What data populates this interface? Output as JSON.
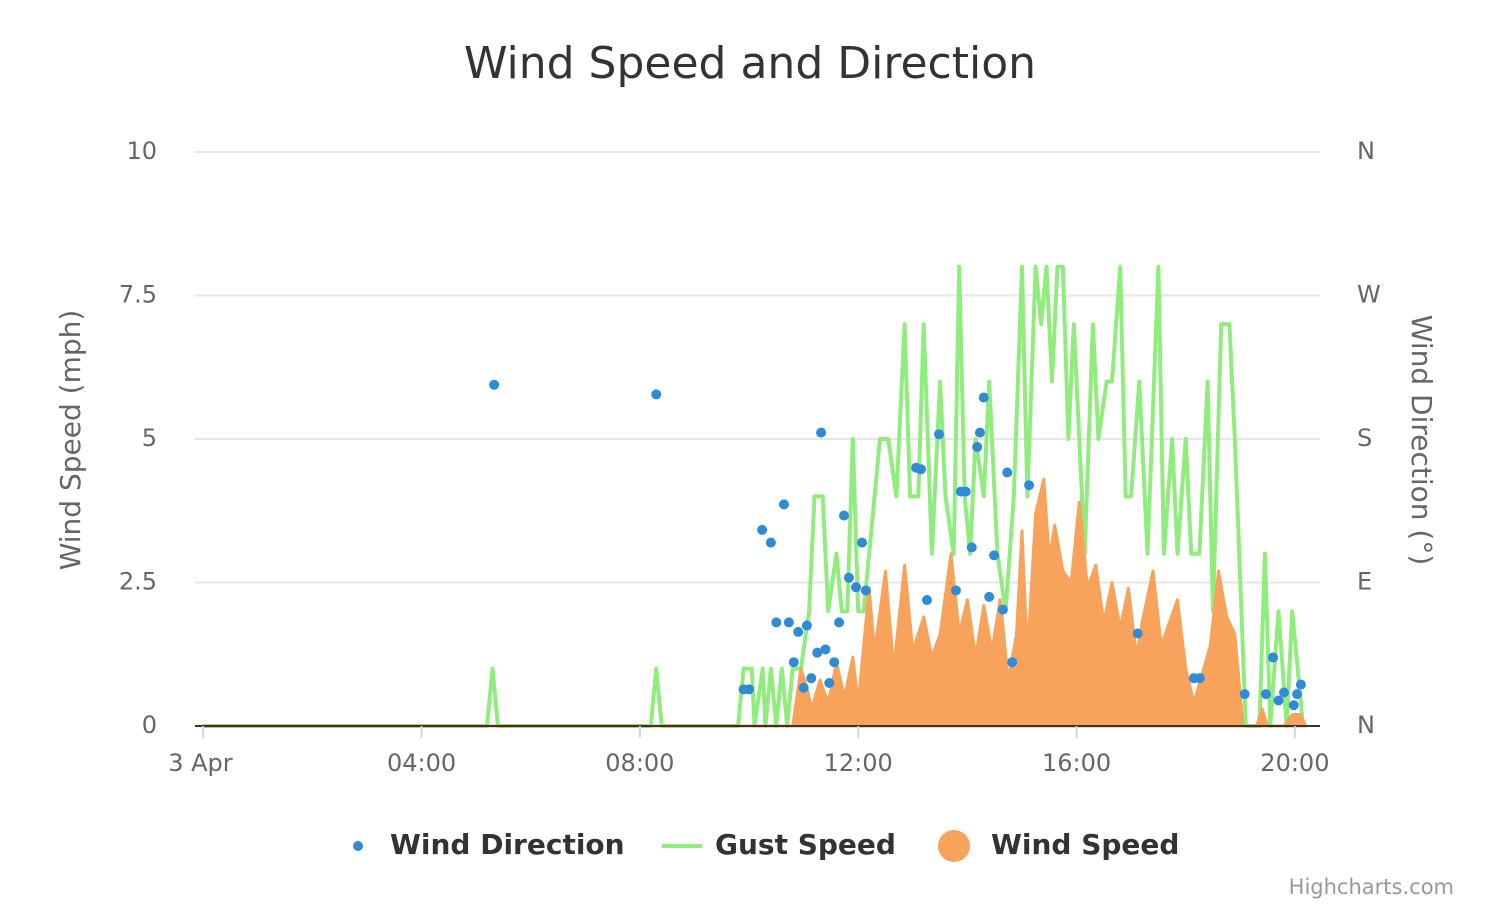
{
  "chart_data": {
    "type": "line",
    "title": "Wind Speed and Direction",
    "y_label": "Wind Speed (mph)",
    "y2_label": "Wind Direction (°)",
    "credits": "Highcharts.com",
    "grid": true,
    "legend": "bottom",
    "xlim": [
      -0.15,
      20.46
    ],
    "xticks": [
      {
        "value": 0,
        "label": "3 Apr"
      },
      {
        "value": 4,
        "label": "04:00"
      },
      {
        "value": 8,
        "label": "08:00"
      },
      {
        "value": 12,
        "label": "12:00"
      },
      {
        "value": 16,
        "label": "16:00"
      },
      {
        "value": 20,
        "label": "20:00"
      }
    ],
    "ylim": [
      0,
      10
    ],
    "yticks": [
      0,
      2.5,
      5,
      7.5,
      10
    ],
    "y2lim": [
      0,
      360
    ],
    "y2ticks": [
      {
        "value": 0,
        "label": "N"
      },
      {
        "value": 90,
        "label": "E"
      },
      {
        "value": 180,
        "label": "S"
      },
      {
        "value": 270,
        "label": "W"
      },
      {
        "value": 360,
        "label": "N"
      }
    ],
    "series": [
      {
        "name": "Wind Direction",
        "type": "scatter",
        "axis": "y2",
        "color": "#2f8bd6",
        "x": [
          5.33,
          8.3,
          9.9,
          10.0,
          10.24,
          10.4,
          10.5,
          10.64,
          10.73,
          10.82,
          10.9,
          11.0,
          11.06,
          11.14,
          11.25,
          11.32,
          11.4,
          11.47,
          11.56,
          11.65,
          11.74,
          11.83,
          11.96,
          12.07,
          12.14,
          13.06,
          13.15,
          13.26,
          13.48,
          13.79,
          13.88,
          13.97,
          14.08,
          14.18,
          14.23,
          14.3,
          14.4,
          14.49,
          14.65,
          14.73,
          14.82,
          15.13,
          17.12,
          18.15,
          18.26,
          19.08,
          19.47,
          19.6,
          19.7,
          19.8,
          19.98,
          20.04,
          20.11
        ],
        "values": [
          214,
          208,
          23,
          23,
          123,
          115,
          65,
          139,
          65,
          40,
          59,
          24,
          63,
          30,
          46,
          184,
          48,
          27,
          40,
          65,
          132,
          93,
          87,
          115,
          85,
          162,
          161,
          79,
          183,
          85,
          147,
          147,
          112,
          175,
          184,
          206,
          81,
          107,
          73,
          159,
          40,
          151,
          58,
          30,
          30,
          20,
          20,
          43,
          16,
          21,
          13,
          20,
          26
        ]
      },
      {
        "name": "Gust Speed",
        "type": "line",
        "color": "#90ed7d",
        "x": [
          0,
          5.2,
          5.3,
          5.4,
          8.2,
          8.3,
          8.4,
          9.8,
          9.9,
          10.05,
          10.1,
          10.25,
          10.3,
          10.4,
          10.5,
          10.6,
          10.7,
          10.8,
          10.95,
          11.1,
          11.2,
          11.35,
          11.45,
          11.6,
          11.7,
          11.8,
          11.9,
          12.0,
          12.1,
          12.3,
          12.4,
          12.55,
          12.7,
          12.85,
          12.95,
          13.1,
          13.2,
          13.35,
          13.5,
          13.6,
          13.75,
          13.85,
          13.95,
          14.05,
          14.15,
          14.3,
          14.4,
          14.55,
          14.7,
          14.85,
          15.0,
          15.1,
          15.25,
          15.35,
          15.45,
          15.55,
          15.65,
          15.75,
          15.85,
          15.95,
          16.05,
          16.15,
          16.3,
          16.4,
          16.55,
          16.65,
          16.8,
          16.9,
          17.0,
          17.15,
          17.3,
          17.5,
          17.6,
          17.75,
          17.85,
          18.0,
          18.1,
          18.25,
          18.4,
          18.5,
          18.65,
          18.8,
          18.9,
          19.1,
          19.35,
          19.45,
          19.55,
          19.7,
          19.85,
          19.95,
          20.15
        ],
        "values": [
          0,
          0,
          1,
          0,
          0,
          1,
          0,
          0,
          1,
          1,
          0,
          1,
          0,
          1,
          0,
          1,
          0,
          1,
          1,
          2,
          4,
          4,
          2,
          3,
          2,
          2,
          5,
          2,
          2,
          4,
          5,
          5,
          4,
          7,
          4,
          4,
          7,
          3,
          6,
          4,
          3,
          8,
          4,
          3,
          5,
          4,
          6,
          3,
          2,
          4,
          8,
          4,
          8,
          7,
          8,
          6,
          8,
          8,
          5,
          7,
          5,
          3,
          7,
          5,
          6,
          6,
          8,
          4,
          4,
          6,
          3,
          8,
          3,
          5,
          3,
          5,
          3,
          3,
          6,
          2,
          7,
          7,
          5,
          0,
          0,
          3,
          0,
          2,
          0,
          2,
          0
        ]
      },
      {
        "name": "Wind Speed",
        "type": "area",
        "color": "#f7a35c",
        "x": [
          0,
          10.8,
          10.95,
          11.05,
          11.15,
          11.3,
          11.45,
          11.6,
          11.75,
          11.9,
          12.0,
          12.2,
          12.3,
          12.5,
          12.65,
          12.85,
          13.0,
          13.2,
          13.35,
          13.5,
          13.7,
          13.85,
          14.0,
          14.15,
          14.3,
          14.45,
          14.6,
          14.75,
          14.9,
          15.0,
          15.1,
          15.25,
          15.4,
          15.5,
          15.6,
          15.75,
          15.9,
          16.05,
          16.2,
          16.35,
          16.5,
          16.65,
          16.8,
          16.95,
          17.1,
          17.2,
          17.4,
          17.55,
          17.7,
          17.85,
          18.0,
          18.15,
          18.3,
          18.45,
          18.6,
          18.75,
          18.9,
          19.05,
          19.3,
          19.4,
          19.5,
          19.8,
          19.95,
          20.1,
          20.2
        ],
        "values": [
          0,
          0,
          1,
          0.7,
          0.3,
          0.8,
          0.4,
          1.1,
          0.5,
          1.2,
          0.4,
          2.4,
          1.3,
          2.7,
          1.0,
          2.8,
          1.3,
          1.9,
          1.2,
          1.6,
          3.0,
          1.6,
          2.2,
          1.2,
          2.1,
          1.3,
          2.2,
          0.8,
          1.6,
          3.4,
          1.2,
          3.7,
          4.3,
          2.9,
          3.5,
          2.7,
          2.5,
          3.9,
          2.4,
          2.8,
          1.8,
          2.5,
          1.7,
          2.4,
          1.2,
          1.8,
          2.7,
          1.4,
          1.8,
          2.2,
          1.0,
          0.4,
          0.9,
          1.4,
          2.7,
          1.9,
          1.6,
          0,
          0,
          0.3,
          0,
          0,
          0.2,
          0.2,
          0
        ]
      }
    ]
  }
}
